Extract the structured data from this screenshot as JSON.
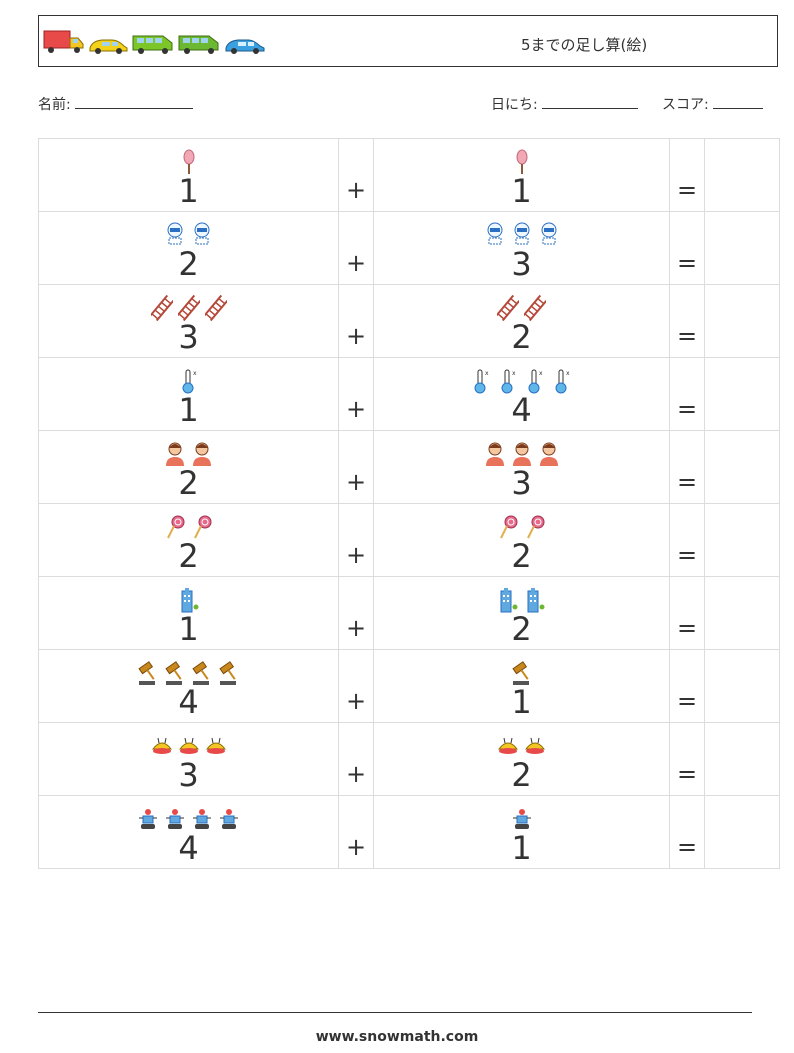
{
  "header": {
    "title": "5までの足し算(絵)",
    "vehicles": [
      "truck-icon",
      "taxi-icon",
      "green-van-icon",
      "green-van-icon",
      "blue-car-icon"
    ]
  },
  "form": {
    "name_label": "名前:",
    "date_label": "日にち:",
    "score_label": "スコア:"
  },
  "operators": {
    "plus": "+",
    "equals": "="
  },
  "problems": [
    {
      "a": "1",
      "b": "1",
      "icon": "cotton-candy-icon"
    },
    {
      "a": "2",
      "b": "3",
      "icon": "robot-face-icon"
    },
    {
      "a": "3",
      "b": "2",
      "icon": "ladder-icon"
    },
    {
      "a": "1",
      "b": "4",
      "icon": "thermometer-icon"
    },
    {
      "a": "2",
      "b": "3",
      "icon": "person-icon"
    },
    {
      "a": "2",
      "b": "2",
      "icon": "lollipop-icon"
    },
    {
      "a": "1",
      "b": "2",
      "icon": "building-icon"
    },
    {
      "a": "4",
      "b": "1",
      "icon": "gavel-icon"
    },
    {
      "a": "3",
      "b": "2",
      "icon": "cake-icon"
    },
    {
      "a": "4",
      "b": "1",
      "icon": "rover-robot-icon"
    }
  ],
  "footer": {
    "url": "www.snowmath.com"
  }
}
